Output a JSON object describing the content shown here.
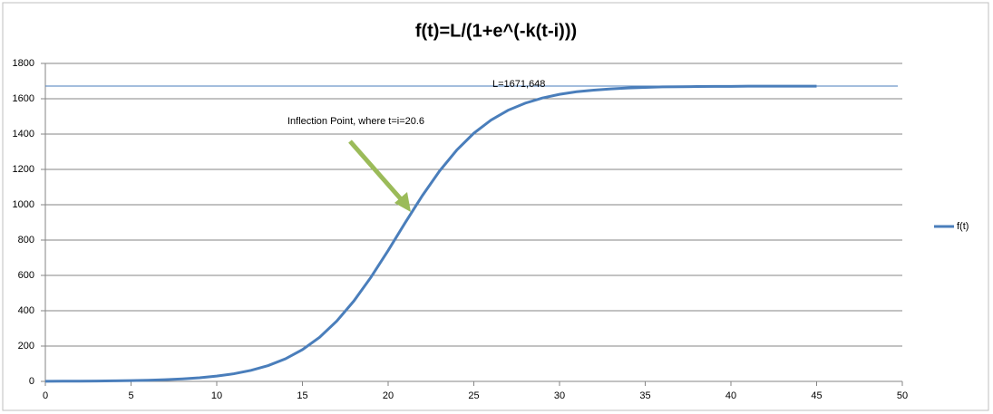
{
  "chart_data": {
    "type": "line",
    "title": "f(t)=L/(1+e^(-k(t-i)))",
    "x": [
      0,
      1,
      2,
      3,
      4,
      5,
      6,
      7,
      8,
      9,
      10,
      11,
      12,
      13,
      14,
      15,
      16,
      17,
      18,
      19,
      20,
      21,
      22,
      23,
      24,
      25,
      26,
      27,
      28,
      29,
      30,
      31,
      32,
      33,
      34,
      35,
      36,
      37,
      38,
      39,
      40,
      41,
      42,
      43,
      44,
      45
    ],
    "series": [
      {
        "name": "f(t)",
        "color": "#4a7ebb",
        "values": [
          0.69,
          1.01,
          1.48,
          2.15,
          3.14,
          4.58,
          6.68,
          9.72,
          14.15,
          20.6,
          29.9,
          43.2,
          62.4,
          89.4,
          127.4,
          179.6,
          249.8,
          341,
          455,
          590,
          741,
          899,
          1052,
          1191,
          1309,
          1405,
          1479,
          1535,
          1575,
          1604,
          1625,
          1640,
          1649,
          1656,
          1661,
          1664,
          1667,
          1668,
          1669,
          1670,
          1670,
          1671,
          1671,
          1671,
          1671,
          1671
        ]
      }
    ],
    "asymptote": {
      "value": 1671.648,
      "label": "L=1671,648",
      "color": "#4a7ebb"
    },
    "annotation": {
      "text": "Inflection Point,  where t=i=20.6",
      "arrow_color": "#9bbb59"
    },
    "xlim": [
      0,
      50
    ],
    "xticks": [
      0,
      5,
      10,
      15,
      20,
      25,
      30,
      35,
      40,
      45,
      50
    ],
    "ylim": [
      0,
      1800
    ],
    "yticks": [
      0,
      200,
      400,
      600,
      800,
      1000,
      1200,
      1400,
      1600,
      1800
    ],
    "grid": true,
    "legend": "right"
  }
}
